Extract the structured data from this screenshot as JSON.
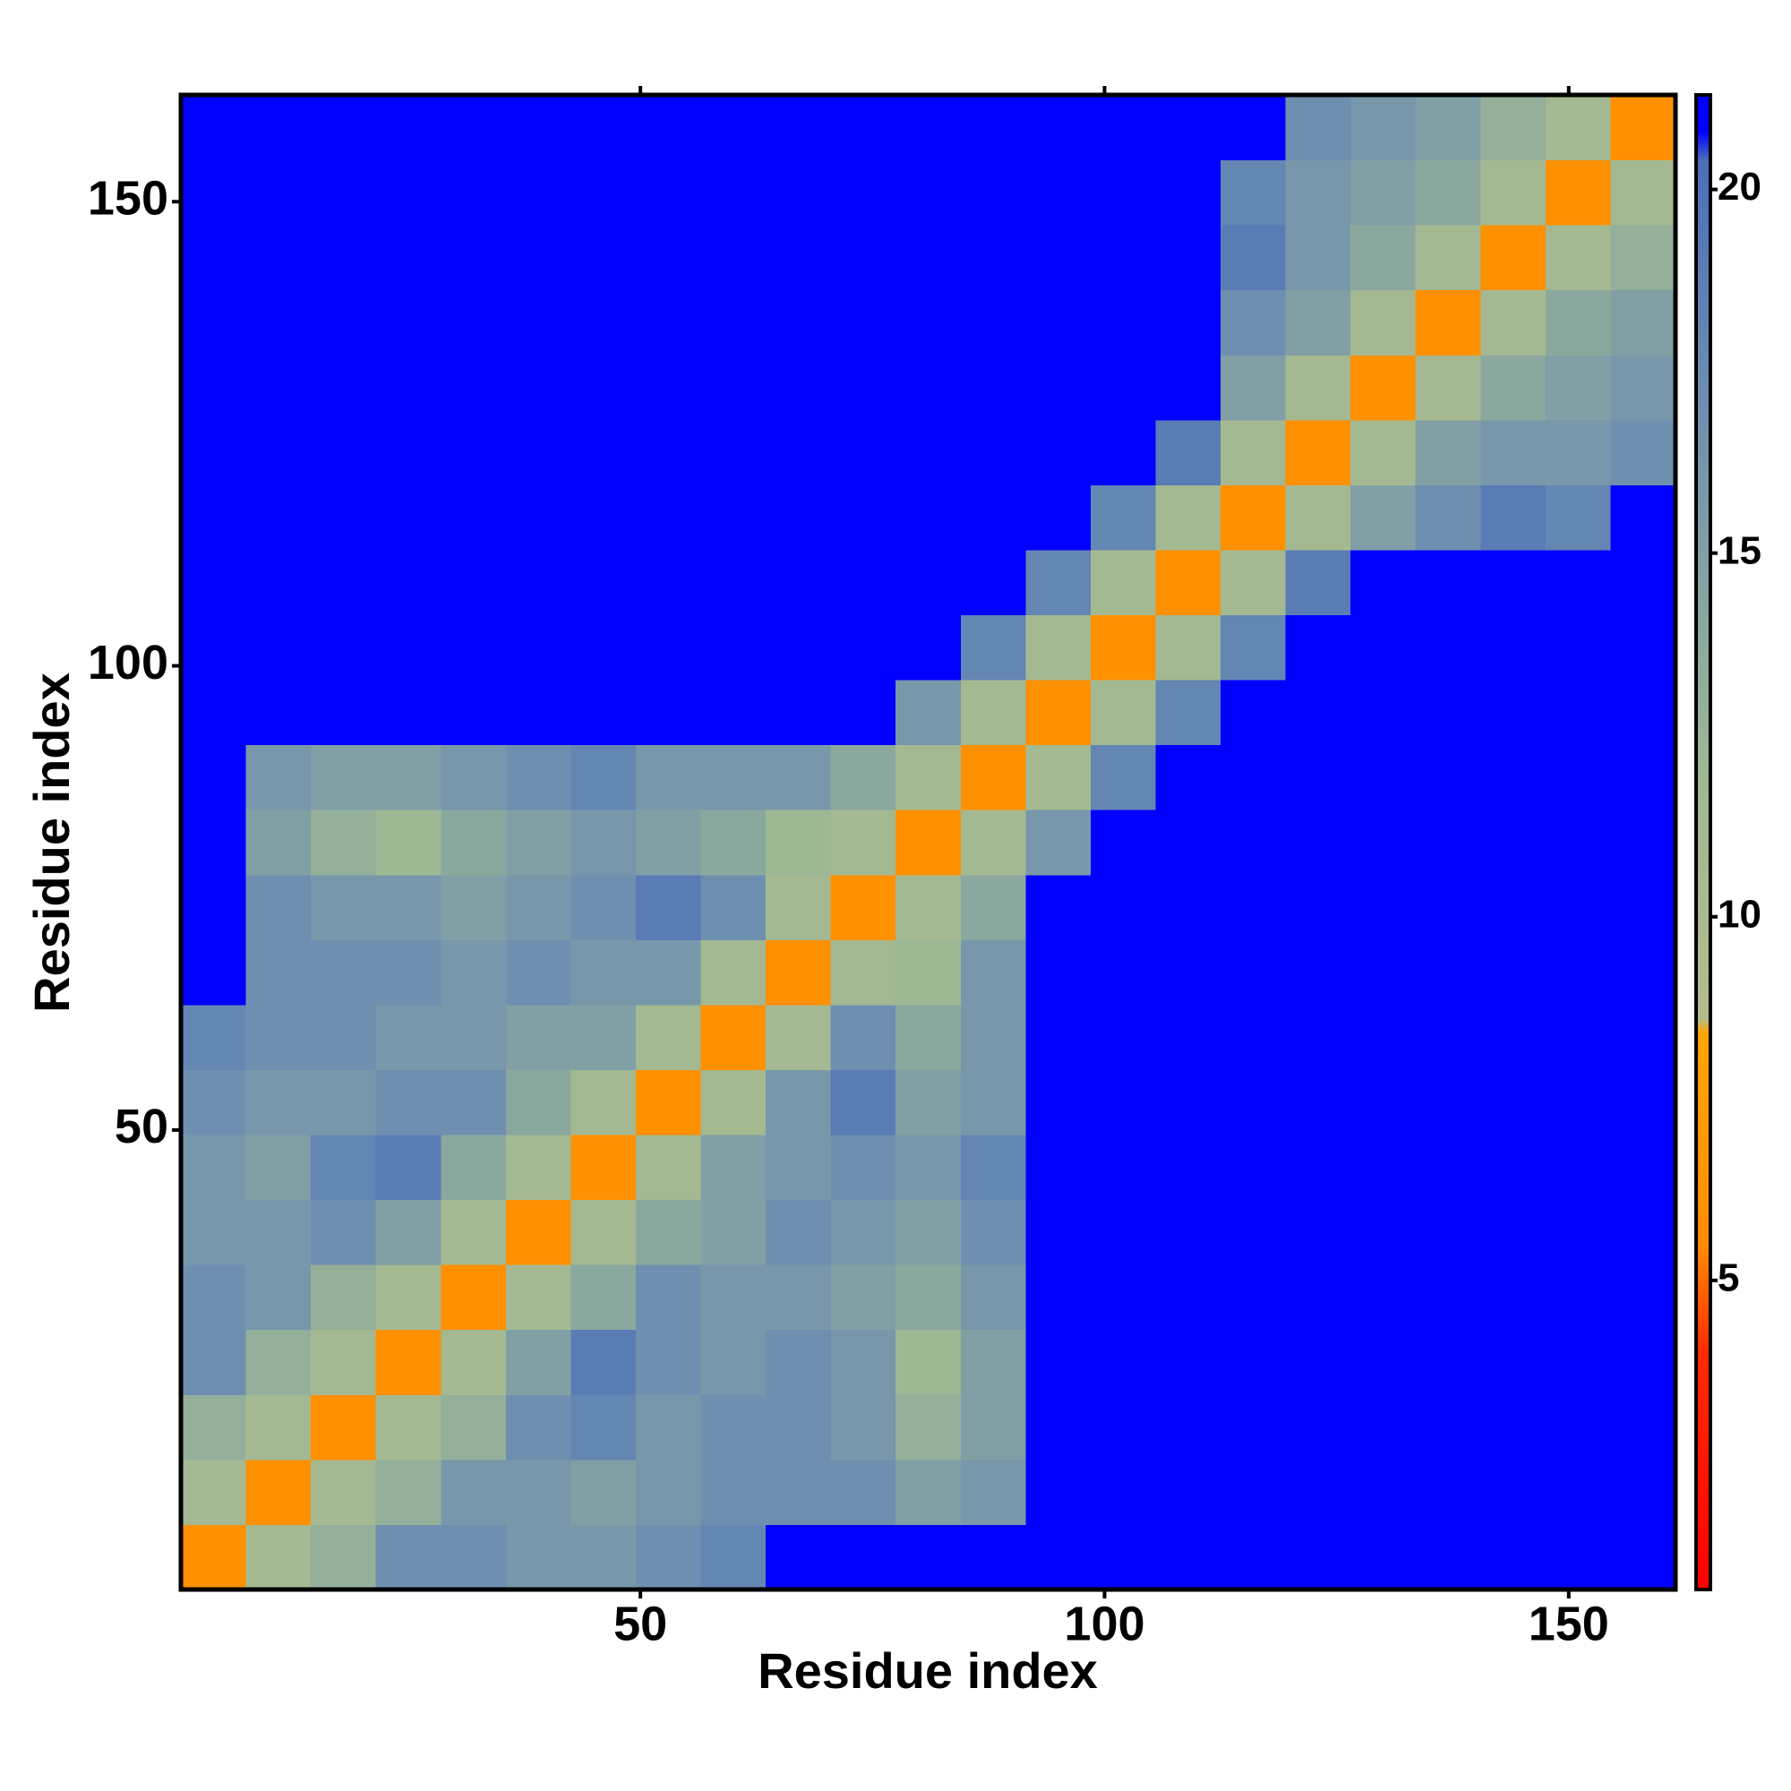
{
  "chart_data": {
    "type": "heatmap",
    "x_label": "Residue index",
    "y_label": "Residue index",
    "bins": [
      0.5,
      7.5,
      14.5,
      21.5,
      28.5,
      35.5,
      42.5,
      49.5,
      56.5,
      63.5,
      70.5,
      77.5,
      84.5,
      91.5,
      98.5,
      105.5,
      112.5,
      119.5,
      126.5,
      133.5,
      140.5,
      147.5,
      154.5,
      161.5
    ],
    "xlim": [
      0.5,
      161.5
    ],
    "ylim": [
      0.5,
      161.5
    ],
    "xticks": [
      50,
      100,
      150
    ],
    "yticks": [
      50,
      100,
      150
    ],
    "clim": [
      0.75,
      21.3
    ],
    "cticks": [
      5,
      10,
      15,
      20
    ],
    "colorscale": [
      [
        0.75,
        "#ff0000"
      ],
      [
        4,
        "#ff2a00"
      ],
      [
        5.5,
        "#ff8c00"
      ],
      [
        8.4,
        "#ffa500"
      ],
      [
        8.6,
        "#b4bc8c"
      ],
      [
        12,
        "#9db894"
      ],
      [
        17,
        "#6f8fb0"
      ],
      [
        20.4,
        "#4a6fb8"
      ],
      [
        20.8,
        "#0000ff"
      ],
      [
        21.3,
        "#0000ff"
      ]
    ],
    "z": [
      [
        6,
        11,
        13,
        17,
        17,
        16,
        16,
        17,
        18,
        21,
        21,
        21,
        21,
        21,
        21,
        21,
        21,
        21,
        21,
        21,
        21,
        21,
        21
      ],
      [
        11,
        6,
        11,
        13,
        16,
        16,
        15,
        16,
        17,
        17,
        17,
        15,
        16,
        21,
        21,
        21,
        21,
        21,
        21,
        21,
        21,
        21,
        21
      ],
      [
        13,
        11,
        6,
        11,
        13,
        17,
        18,
        16,
        17,
        17,
        16,
        13,
        15,
        21,
        21,
        21,
        21,
        21,
        21,
        21,
        21,
        21,
        21
      ],
      [
        17,
        13,
        11,
        6,
        11,
        15,
        19,
        17,
        16,
        17,
        16,
        12,
        15,
        21,
        21,
        21,
        21,
        21,
        21,
        21,
        21,
        21,
        21
      ],
      [
        17,
        16,
        13,
        11,
        6,
        11,
        14,
        17,
        16,
        16,
        15,
        14,
        16,
        21,
        21,
        21,
        21,
        21,
        21,
        21,
        21,
        21,
        21
      ],
      [
        16,
        16,
        17,
        15,
        11,
        6,
        11,
        14,
        15,
        17,
        16,
        15,
        17,
        21,
        21,
        21,
        21,
        21,
        21,
        21,
        21,
        21,
        21
      ],
      [
        16,
        15,
        18,
        19,
        14,
        11,
        6,
        11,
        15,
        16,
        17,
        16,
        18,
        21,
        21,
        21,
        21,
        21,
        21,
        21,
        21,
        21,
        21
      ],
      [
        17,
        16,
        16,
        17,
        17,
        14,
        11,
        6,
        11,
        16,
        19,
        15,
        16,
        21,
        21,
        21,
        21,
        21,
        21,
        21,
        21,
        21,
        21
      ],
      [
        18,
        17,
        17,
        16,
        16,
        15,
        15,
        11,
        6,
        11,
        17,
        14,
        16,
        21,
        21,
        21,
        21,
        21,
        21,
        21,
        21,
        21,
        21
      ],
      [
        21,
        17,
        17,
        17,
        16,
        17,
        16,
        16,
        11,
        6,
        11,
        12,
        16,
        21,
        21,
        21,
        21,
        21,
        21,
        21,
        21,
        21,
        21
      ],
      [
        21,
        17,
        16,
        16,
        15,
        16,
        17,
        19,
        17,
        11,
        6,
        11,
        14,
        21,
        21,
        21,
        21,
        21,
        21,
        21,
        21,
        21,
        21
      ],
      [
        21,
        15,
        13,
        12,
        14,
        15,
        16,
        15,
        14,
        12,
        11,
        6,
        11,
        16,
        21,
        21,
        21,
        21,
        21,
        21,
        21,
        21,
        21
      ],
      [
        21,
        16,
        15,
        15,
        16,
        17,
        18,
        16,
        16,
        16,
        14,
        11,
        6,
        11,
        18,
        21,
        21,
        21,
        21,
        21,
        21,
        21,
        21
      ],
      [
        21,
        21,
        21,
        21,
        21,
        21,
        21,
        21,
        21,
        21,
        21,
        16,
        11,
        6,
        11,
        18,
        21,
        21,
        21,
        21,
        21,
        21,
        21
      ],
      [
        21,
        21,
        21,
        21,
        21,
        21,
        21,
        21,
        21,
        21,
        21,
        21,
        18,
        11,
        6,
        11,
        18,
        21,
        21,
        21,
        21,
        21,
        21
      ],
      [
        21,
        21,
        21,
        21,
        21,
        21,
        21,
        21,
        21,
        21,
        21,
        21,
        21,
        18,
        11,
        6,
        11,
        19,
        21,
        21,
        21,
        21,
        21
      ],
      [
        21,
        21,
        21,
        21,
        21,
        21,
        21,
        21,
        21,
        21,
        21,
        21,
        21,
        21,
        18,
        11,
        6,
        11,
        15,
        17,
        19,
        18,
        21
      ],
      [
        21,
        21,
        21,
        21,
        21,
        21,
        21,
        21,
        21,
        21,
        21,
        21,
        21,
        21,
        21,
        19,
        11,
        6,
        11,
        15,
        16,
        16,
        17
      ],
      [
        21,
        21,
        21,
        21,
        21,
        21,
        21,
        21,
        21,
        21,
        21,
        21,
        21,
        21,
        21,
        21,
        15,
        11,
        6,
        11,
        14,
        15,
        16
      ],
      [
        21,
        21,
        21,
        21,
        21,
        21,
        21,
        21,
        21,
        21,
        21,
        21,
        21,
        21,
        21,
        21,
        17,
        15,
        11,
        6,
        11,
        14,
        15
      ],
      [
        21,
        21,
        21,
        21,
        21,
        21,
        21,
        21,
        21,
        21,
        21,
        21,
        21,
        21,
        21,
        21,
        19,
        16,
        14,
        11,
        6,
        11,
        13
      ],
      [
        21,
        21,
        21,
        21,
        21,
        21,
        21,
        21,
        21,
        21,
        21,
        21,
        21,
        21,
        21,
        21,
        18,
        16,
        15,
        14,
        11,
        6,
        11
      ],
      [
        21,
        21,
        21,
        21,
        21,
        21,
        21,
        21,
        21,
        21,
        21,
        21,
        21,
        21,
        21,
        21,
        21,
        17,
        16,
        15,
        13,
        11,
        6
      ]
    ]
  }
}
